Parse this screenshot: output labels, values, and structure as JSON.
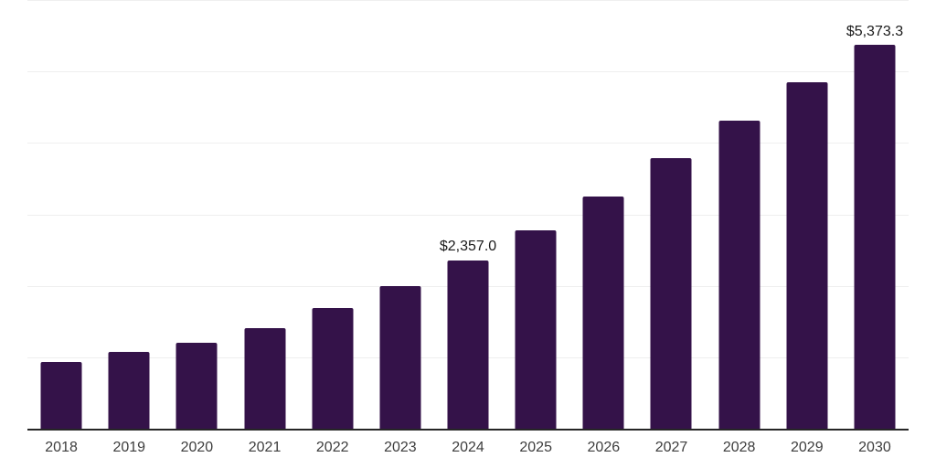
{
  "chart_data": {
    "type": "bar",
    "title": "",
    "xlabel": "",
    "ylabel": "",
    "categories": [
      "2018",
      "2019",
      "2020",
      "2021",
      "2022",
      "2023",
      "2024",
      "2025",
      "2026",
      "2027",
      "2028",
      "2029",
      "2030"
    ],
    "values": [
      930,
      1070,
      1200,
      1405,
      1690,
      1990,
      2357.0,
      2770,
      3255,
      3790,
      4315,
      4850,
      5373.3
    ],
    "data_labels": [
      "",
      "",
      "",
      "",
      "",
      "",
      "$2,357.0",
      "",
      "",
      "",
      "",
      "",
      "$5,373.3"
    ],
    "ylim": [
      0,
      6000
    ],
    "gridline_interval": 1000,
    "grid": "horizontal-only",
    "legend": "none",
    "y_tick_labels_visible": false,
    "colors": {
      "bar": "#341249",
      "grid": "#efefef",
      "axis_line": "#262626",
      "tick_label": "#3d3d3d",
      "data_label": "#1a1a1a",
      "background": "#ffffff"
    }
  }
}
